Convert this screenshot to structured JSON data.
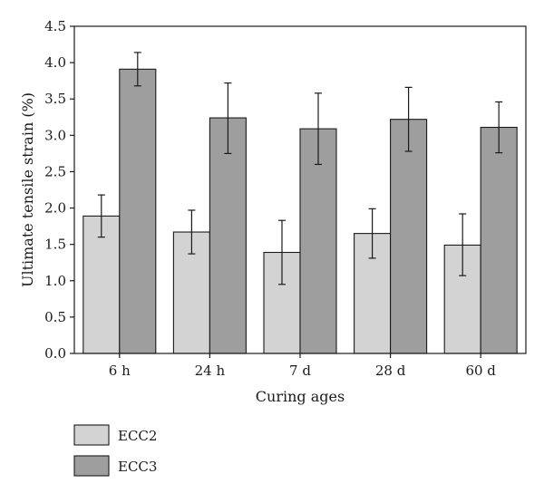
{
  "chart_data": {
    "type": "bar",
    "xlabel": "Curing ages",
    "ylabel": "Ultimate tensile strain (%)",
    "ylim": [
      0,
      4.5
    ],
    "yticks": [
      "0.0",
      "0.5",
      "1.0",
      "1.5",
      "2.0",
      "2.5",
      "3.0",
      "3.5",
      "4.0",
      "4.5"
    ],
    "categories": [
      "6 h",
      "24 h",
      "7 d",
      "28 d",
      "60 d"
    ],
    "grid": false,
    "legend_position": "bottom-left",
    "series": [
      {
        "name": "ECC2",
        "color": "#d3d3d3",
        "values": [
          1.89,
          1.67,
          1.39,
          1.65,
          1.49
        ],
        "err_low": [
          1.6,
          1.37,
          0.95,
          1.31,
          1.07
        ],
        "err_high": [
          2.18,
          1.97,
          1.83,
          1.99,
          1.92
        ]
      },
      {
        "name": "ECC3",
        "color": "#9e9e9e",
        "values": [
          3.91,
          3.24,
          3.09,
          3.22,
          3.11
        ],
        "err_low": [
          3.68,
          2.75,
          2.6,
          2.78,
          2.76
        ],
        "err_high": [
          4.14,
          3.72,
          3.58,
          3.66,
          3.46
        ]
      }
    ]
  }
}
